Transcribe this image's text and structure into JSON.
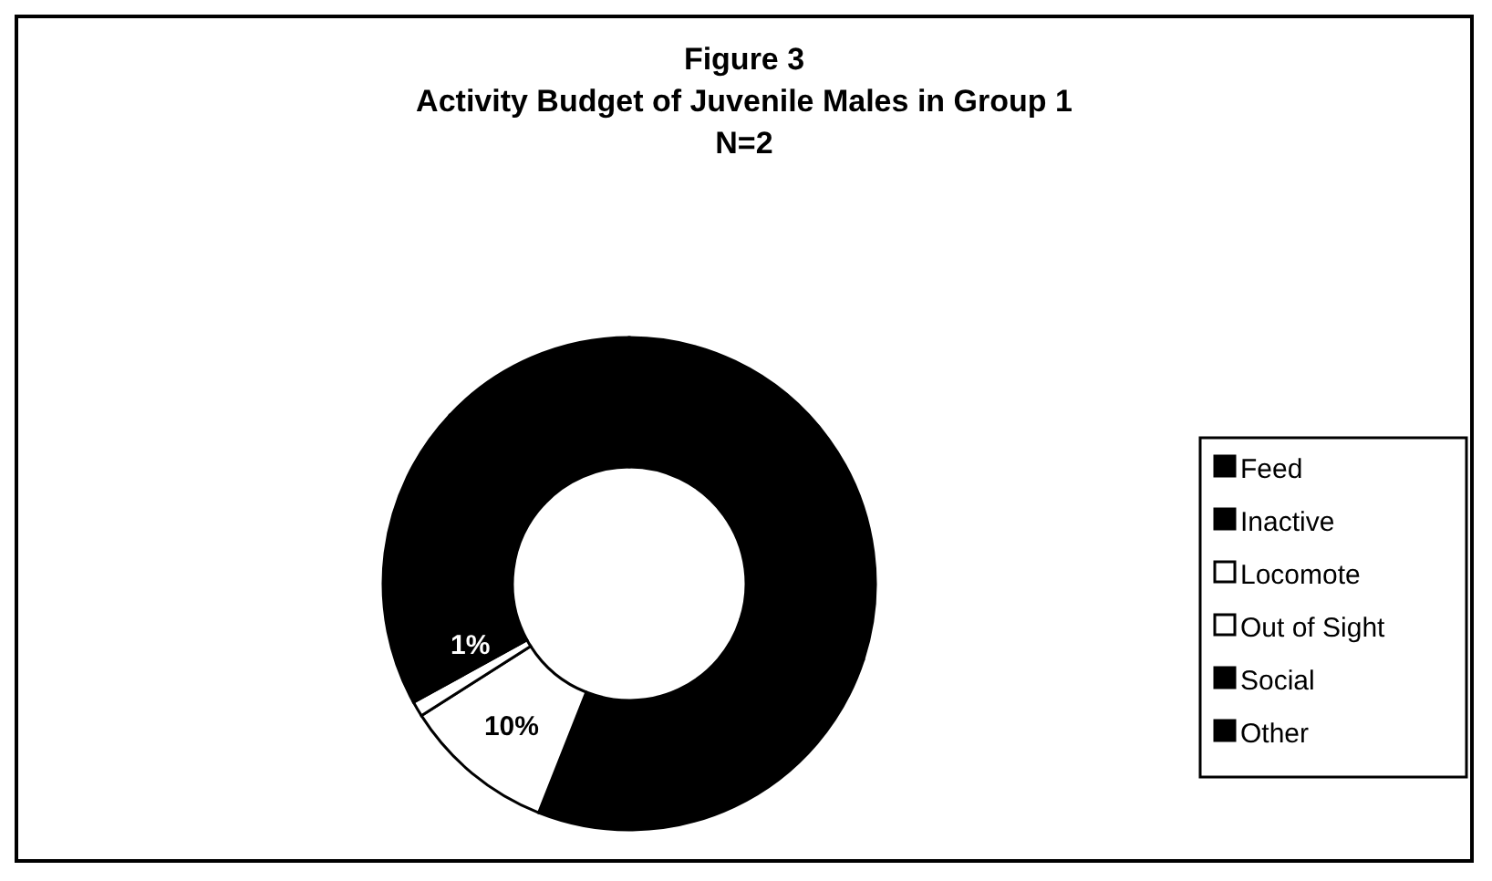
{
  "chart_data": {
    "type": "donut",
    "title": "Figure 3\nActivity Budget of Juvenile Males in Group 1\nN=2",
    "categories": [
      "Feed",
      "Inactive",
      "Locomote",
      "Out of Sight",
      "Social",
      "Other"
    ],
    "values": [
      30,
      26,
      10,
      1,
      20,
      13
    ],
    "colors": [
      "#000000",
      "#000000",
      "#ffffff",
      "#ffffff",
      "#000000",
      "#000000"
    ],
    "value_labels": [
      null,
      null,
      "10%",
      "1%",
      null,
      null
    ],
    "legend": "right"
  }
}
